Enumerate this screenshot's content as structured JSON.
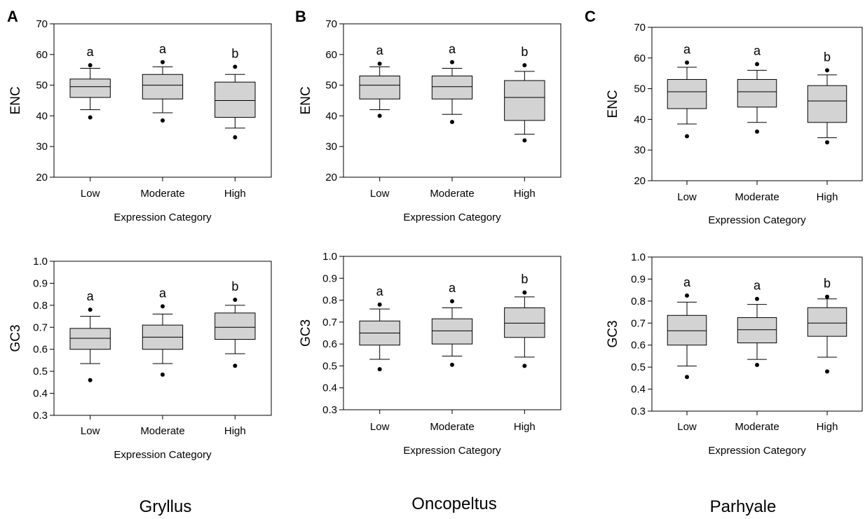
{
  "panel_letters": [
    "A",
    "B",
    "C"
  ],
  "species": [
    "Gryllus",
    "Oncopeltus",
    "Parhyale"
  ],
  "colors": {
    "box_fill": "#d3d3d3",
    "stroke": "#000000",
    "background": "#ffffff"
  },
  "chart_data": [
    {
      "type": "box",
      "panel": "A",
      "species": "Gryllus",
      "xlabel": "Expression Category",
      "ylabel": "ENC",
      "ylim": [
        20,
        70
      ],
      "yticks": [
        "20",
        "30",
        "40",
        "50",
        "60",
        "70"
      ],
      "categories": [
        "Low",
        "Moderate",
        "High"
      ],
      "boxes": [
        {
          "category": "Low",
          "whisker_low": 42,
          "q1": 46,
          "median": 49.5,
          "q3": 52,
          "whisker_high": 55.5,
          "outlier_low": 39.5,
          "outlier_high": 56.5,
          "letter": "a"
        },
        {
          "category": "Moderate",
          "whisker_low": 41,
          "q1": 45.5,
          "median": 50,
          "q3": 53.5,
          "whisker_high": 56,
          "outlier_low": 38.5,
          "outlier_high": 57.5,
          "letter": "a"
        },
        {
          "category": "High",
          "whisker_low": 36,
          "q1": 39.5,
          "median": 45,
          "q3": 51,
          "whisker_high": 53.5,
          "outlier_low": 33,
          "outlier_high": 56,
          "letter": "b"
        }
      ],
      "grid": false
    },
    {
      "type": "box",
      "panel": "B",
      "species": "Oncopeltus",
      "xlabel": "Expression Category",
      "ylabel": "ENC",
      "ylim": [
        20,
        70
      ],
      "yticks": [
        "20",
        "30",
        "40",
        "50",
        "60",
        "70"
      ],
      "categories": [
        "Low",
        "Moderate",
        "High"
      ],
      "boxes": [
        {
          "category": "Low",
          "whisker_low": 42,
          "q1": 45.5,
          "median": 50,
          "q3": 53,
          "whisker_high": 56,
          "outlier_low": 40,
          "outlier_high": 57,
          "letter": "a"
        },
        {
          "category": "Moderate",
          "whisker_low": 40.5,
          "q1": 45.5,
          "median": 49.5,
          "q3": 53,
          "whisker_high": 55.5,
          "outlier_low": 38,
          "outlier_high": 57.5,
          "letter": "a"
        },
        {
          "category": "High",
          "whisker_low": 34,
          "q1": 38.5,
          "median": 46,
          "q3": 51.5,
          "whisker_high": 54.5,
          "outlier_low": 32,
          "outlier_high": 56.5,
          "letter": "b"
        }
      ],
      "grid": false
    },
    {
      "type": "box",
      "panel": "C",
      "species": "Parhyale",
      "xlabel": "Expression Category",
      "ylabel": "ENC",
      "ylim": [
        20,
        70
      ],
      "yticks": [
        "20",
        "30",
        "40",
        "50",
        "60",
        "70"
      ],
      "categories": [
        "Low",
        "Moderate",
        "High"
      ],
      "boxes": [
        {
          "category": "Low",
          "whisker_low": 38.5,
          "q1": 43.5,
          "median": 49,
          "q3": 53,
          "whisker_high": 57,
          "outlier_low": 34.5,
          "outlier_high": 58.5,
          "letter": "a"
        },
        {
          "category": "Moderate",
          "whisker_low": 39,
          "q1": 44,
          "median": 49,
          "q3": 53,
          "whisker_high": 56,
          "outlier_low": 36,
          "outlier_high": 58,
          "letter": "a"
        },
        {
          "category": "High",
          "whisker_low": 34,
          "q1": 39,
          "median": 46,
          "q3": 51,
          "whisker_high": 54.5,
          "outlier_low": 32.5,
          "outlier_high": 56,
          "letter": "b"
        }
      ],
      "grid": false
    },
    {
      "type": "box",
      "panel": "A",
      "species": "Gryllus",
      "xlabel": "Expression Category",
      "ylabel": "GC3",
      "ylim": [
        0.3,
        1.0
      ],
      "yticks": [
        "0.3",
        "0.4",
        "0.5",
        "0.6",
        "0.7",
        "0.8",
        "0.9",
        "1.0"
      ],
      "categories": [
        "Low",
        "Moderate",
        "High"
      ],
      "boxes": [
        {
          "category": "Low",
          "whisker_low": 0.535,
          "q1": 0.6,
          "median": 0.65,
          "q3": 0.695,
          "whisker_high": 0.75,
          "outlier_low": 0.46,
          "outlier_high": 0.78,
          "letter": "a"
        },
        {
          "category": "Moderate",
          "whisker_low": 0.535,
          "q1": 0.6,
          "median": 0.655,
          "q3": 0.71,
          "whisker_high": 0.76,
          "outlier_low": 0.485,
          "outlier_high": 0.795,
          "letter": "a"
        },
        {
          "category": "High",
          "whisker_low": 0.58,
          "q1": 0.645,
          "median": 0.7,
          "q3": 0.765,
          "whisker_high": 0.8,
          "outlier_low": 0.525,
          "outlier_high": 0.825,
          "letter": "b"
        }
      ],
      "grid": false
    },
    {
      "type": "box",
      "panel": "B",
      "species": "Oncopeltus",
      "xlabel": "Expression Category",
      "ylabel": "GC3",
      "ylim": [
        0.3,
        1.0
      ],
      "yticks": [
        "0.3",
        "0.4",
        "0.5",
        "0.6",
        "0.7",
        "0.8",
        "0.9",
        "1.0"
      ],
      "categories": [
        "Low",
        "Moderate",
        "High"
      ],
      "boxes": [
        {
          "category": "Low",
          "whisker_low": 0.53,
          "q1": 0.595,
          "median": 0.65,
          "q3": 0.705,
          "whisker_high": 0.76,
          "outlier_low": 0.485,
          "outlier_high": 0.78,
          "letter": "a"
        },
        {
          "category": "Moderate",
          "whisker_low": 0.545,
          "q1": 0.6,
          "median": 0.66,
          "q3": 0.715,
          "whisker_high": 0.765,
          "outlier_low": 0.505,
          "outlier_high": 0.795,
          "letter": "a"
        },
        {
          "category": "High",
          "whisker_low": 0.54,
          "q1": 0.63,
          "median": 0.695,
          "q3": 0.765,
          "whisker_high": 0.815,
          "outlier_low": 0.5,
          "outlier_high": 0.835,
          "letter": "b"
        }
      ],
      "grid": false
    },
    {
      "type": "box",
      "panel": "C",
      "species": "Parhyale",
      "xlabel": "Expression Category",
      "ylabel": "GC3",
      "ylim": [
        0.3,
        1.0
      ],
      "yticks": [
        "0.3",
        "0.4",
        "0.5",
        "0.6",
        "0.7",
        "0.8",
        "0.9",
        "1.0"
      ],
      "categories": [
        "Low",
        "Moderate",
        "High"
      ],
      "boxes": [
        {
          "category": "Low",
          "whisker_low": 0.505,
          "q1": 0.6,
          "median": 0.665,
          "q3": 0.735,
          "whisker_high": 0.795,
          "outlier_low": 0.455,
          "outlier_high": 0.825,
          "letter": "a"
        },
        {
          "category": "Moderate",
          "whisker_low": 0.535,
          "q1": 0.61,
          "median": 0.67,
          "q3": 0.725,
          "whisker_high": 0.785,
          "outlier_low": 0.51,
          "outlier_high": 0.81,
          "letter": "a"
        },
        {
          "category": "High",
          "whisker_low": 0.545,
          "q1": 0.64,
          "median": 0.7,
          "q3": 0.77,
          "whisker_high": 0.81,
          "outlier_low": 0.48,
          "outlier_high": 0.82,
          "letter": "b"
        }
      ],
      "grid": false
    }
  ]
}
